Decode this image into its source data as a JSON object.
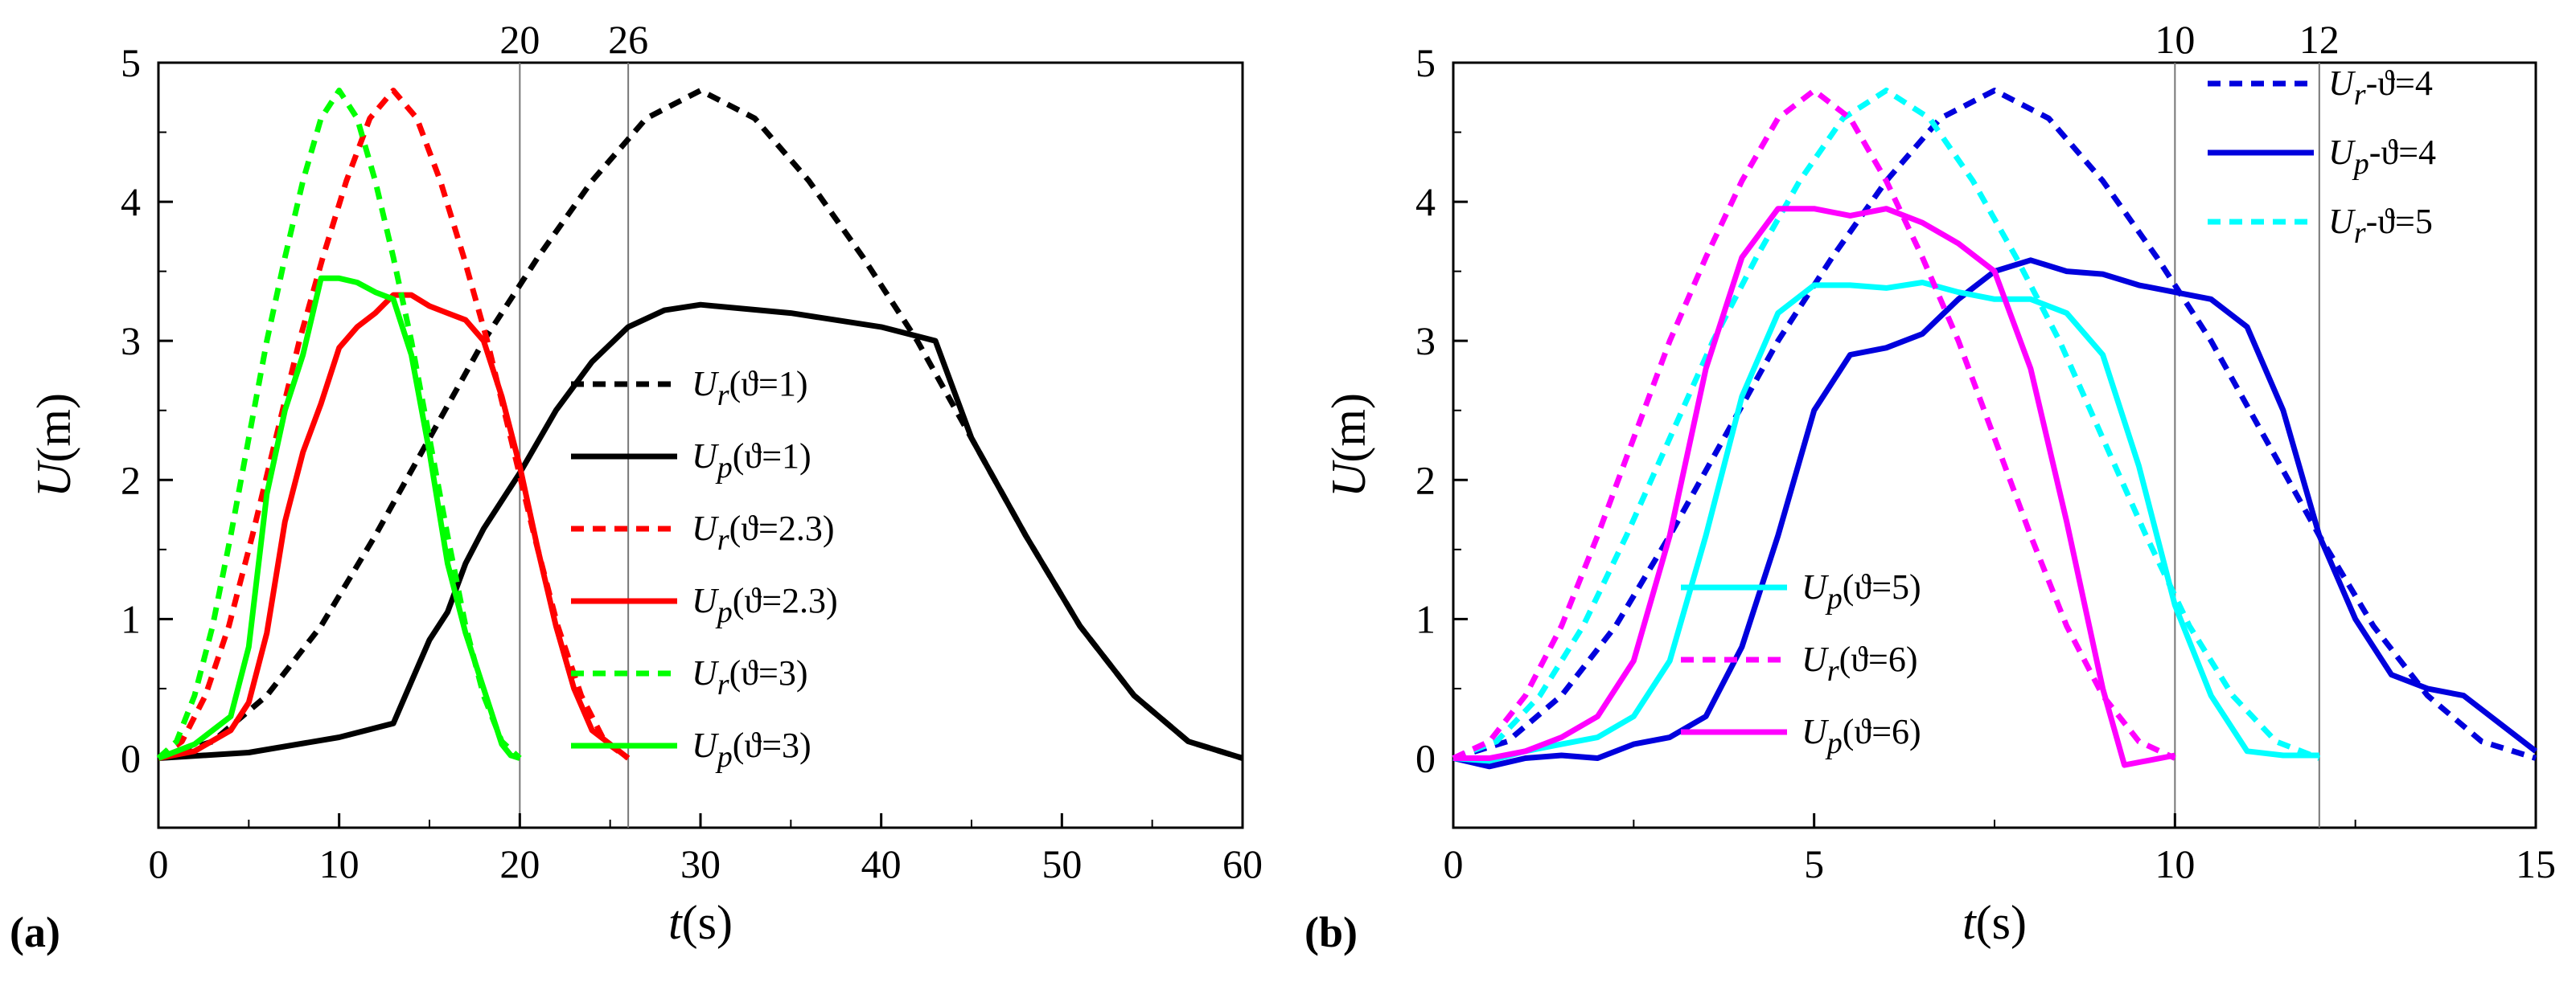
{
  "chart_data": [
    {
      "type": "line",
      "panel_label": "(a)",
      "xlabel_var": "t",
      "xlabel_unit": "(s)",
      "ylabel_var": "U",
      "ylabel_unit": "(m)",
      "xlim": [
        0,
        60
      ],
      "ylim": [
        -0.5,
        5
      ],
      "xticks": [
        "0",
        "10",
        "20",
        "30",
        "40",
        "50",
        "60"
      ],
      "yticks": [
        "0",
        "1",
        "2",
        "3",
        "4",
        "5"
      ],
      "vlines": [
        {
          "x": 20,
          "label": "20"
        },
        {
          "x": 26,
          "label": "26"
        }
      ],
      "series": [
        {
          "var": "U",
          "sub": "r",
          "param": "(ϑ=1)",
          "color": "#000000",
          "dash": true,
          "x": [
            0,
            3,
            6,
            9,
            12,
            15,
            18,
            21,
            24,
            27,
            30,
            33,
            36,
            39,
            42,
            45,
            48,
            51,
            54,
            57,
            60
          ],
          "y": [
            0,
            0.12,
            0.45,
            0.95,
            1.6,
            2.3,
            3.0,
            3.6,
            4.15,
            4.6,
            4.8,
            4.6,
            4.15,
            3.6,
            3.0,
            2.3,
            1.6,
            0.95,
            0.45,
            0.12,
            0
          ]
        },
        {
          "var": "U",
          "sub": "p",
          "param": "(ϑ=1)",
          "color": "#000000",
          "dash": false,
          "x": [
            0,
            5,
            10,
            13,
            14,
            15,
            16,
            17,
            18,
            20,
            22,
            24,
            26,
            28,
            30,
            35,
            40,
            43,
            45,
            48,
            51,
            54,
            57,
            60
          ],
          "y": [
            0,
            0.04,
            0.15,
            0.25,
            0.55,
            0.85,
            1.05,
            1.4,
            1.65,
            2.05,
            2.5,
            2.85,
            3.1,
            3.22,
            3.26,
            3.2,
            3.1,
            3.0,
            2.3,
            1.6,
            0.95,
            0.45,
            0.12,
            0
          ]
        },
        {
          "var": "U",
          "sub": "r",
          "param": "(ϑ=2.3)",
          "color": "#ff0000",
          "dash": true,
          "x": [
            0,
            1.3,
            2.6,
            3.9,
            5.2,
            6.5,
            7.8,
            9.1,
            10.4,
            11.7,
            13,
            14.3,
            15.6,
            16.9,
            18.2,
            19.5,
            20.8,
            22.1,
            23.4,
            24.7,
            26
          ],
          "y": [
            0,
            0.12,
            0.45,
            0.95,
            1.6,
            2.3,
            3.0,
            3.6,
            4.15,
            4.6,
            4.8,
            4.6,
            4.15,
            3.6,
            3.0,
            2.3,
            1.6,
            0.95,
            0.45,
            0.12,
            0
          ]
        },
        {
          "var": "U",
          "sub": "p",
          "param": "(ϑ=2.3)",
          "color": "#ff0000",
          "dash": false,
          "x": [
            0,
            2,
            4,
            5,
            6,
            7,
            8,
            9,
            10,
            11,
            12,
            13,
            14,
            15,
            16,
            17,
            18,
            19,
            20,
            21,
            22,
            23,
            24,
            25,
            26
          ],
          "y": [
            0,
            0.05,
            0.2,
            0.4,
            0.9,
            1.7,
            2.2,
            2.55,
            2.95,
            3.1,
            3.2,
            3.33,
            3.33,
            3.25,
            3.2,
            3.15,
            3.0,
            2.6,
            2.1,
            1.5,
            0.95,
            0.5,
            0.2,
            0.1,
            0
          ]
        },
        {
          "var": "U",
          "sub": "r",
          "param": "(ϑ=3)",
          "color": "#00ff00",
          "dash": true,
          "x": [
            0,
            1,
            2,
            3,
            4,
            5,
            6,
            7,
            8,
            9,
            10,
            11,
            12,
            13,
            14,
            15,
            16,
            17,
            18,
            19,
            20
          ],
          "y": [
            0,
            0.12,
            0.45,
            0.95,
            1.6,
            2.3,
            3.0,
            3.6,
            4.15,
            4.6,
            4.8,
            4.6,
            4.15,
            3.6,
            3.0,
            2.3,
            1.6,
            0.95,
            0.45,
            0.12,
            0
          ]
        },
        {
          "var": "U",
          "sub": "p",
          "param": "(ϑ=3)",
          "color": "#00ff00",
          "dash": false,
          "x": [
            0,
            1,
            2,
            3,
            4,
            5,
            6,
            7,
            8,
            9,
            10,
            11,
            12,
            13,
            14,
            15,
            16,
            17,
            18,
            19,
            19.5,
            20
          ],
          "y": [
            0,
            0.05,
            0.1,
            0.2,
            0.3,
            0.8,
            1.9,
            2.5,
            2.9,
            3.45,
            3.45,
            3.42,
            3.35,
            3.3,
            2.9,
            2.2,
            1.4,
            0.9,
            0.5,
            0.1,
            0.02,
            0
          ]
        }
      ]
    },
    {
      "type": "line",
      "panel_label": "(b)",
      "xlabel_var": "t",
      "xlabel_unit": "(s)",
      "ylabel_var": "U",
      "ylabel_unit": "(m)",
      "xlim": [
        0,
        15
      ],
      "ylim": [
        -0.5,
        5
      ],
      "xticks": [
        "0",
        "5",
        "10",
        "15"
      ],
      "yticks": [
        "0",
        "1",
        "2",
        "3",
        "4",
        "5"
      ],
      "vlines": [
        {
          "x": 10,
          "label": "10"
        },
        {
          "x": 12,
          "label": "12"
        }
      ],
      "series": [
        {
          "var": "U",
          "sub": "r",
          "param": "-ϑ=4",
          "color": "#0000dd",
          "dash": true,
          "x": [
            0,
            0.75,
            1.5,
            2.25,
            3,
            3.75,
            4.5,
            5.25,
            6,
            6.75,
            7.5,
            8.25,
            9,
            9.75,
            10.5,
            11.25,
            12,
            12.75,
            13.5,
            14.25,
            15
          ],
          "y": [
            0,
            0.12,
            0.45,
            0.95,
            1.6,
            2.3,
            3.0,
            3.6,
            4.15,
            4.6,
            4.8,
            4.6,
            4.15,
            3.6,
            3.0,
            2.3,
            1.6,
            0.95,
            0.45,
            0.12,
            0
          ]
        },
        {
          "var": "U",
          "sub": "p",
          "param": "-ϑ=4",
          "color": "#0000dd",
          "dash": false,
          "x": [
            0,
            0.5,
            1,
            1.5,
            2,
            2.5,
            3,
            3.5,
            4,
            4.5,
            5,
            5.5,
            6,
            6.5,
            7,
            7.5,
            8,
            8.5,
            9,
            9.5,
            10,
            10.5,
            11,
            11.5,
            12,
            12.5,
            13,
            13.5,
            14,
            14.5,
            15
          ],
          "y": [
            0,
            -0.06,
            0,
            0.02,
            0,
            0.1,
            0.15,
            0.3,
            0.8,
            1.6,
            2.5,
            2.9,
            2.95,
            3.05,
            3.3,
            3.5,
            3.58,
            3.5,
            3.48,
            3.4,
            3.35,
            3.3,
            3.1,
            2.5,
            1.6,
            1.0,
            0.6,
            0.5,
            0.45,
            0.25,
            0.05
          ]
        },
        {
          "var": "U",
          "sub": "r",
          "param": "-ϑ=5",
          "color": "#00ffff",
          "dash": true,
          "x": [
            0,
            0.6,
            1.2,
            1.8,
            2.4,
            3,
            3.6,
            4.2,
            4.8,
            5.4,
            6,
            6.6,
            7.2,
            7.8,
            8.4,
            9,
            9.6,
            10.2,
            10.8,
            11.4,
            12
          ],
          "y": [
            0,
            0.12,
            0.45,
            0.95,
            1.6,
            2.3,
            3.0,
            3.6,
            4.15,
            4.6,
            4.8,
            4.6,
            4.15,
            3.6,
            3.0,
            2.3,
            1.6,
            0.95,
            0.45,
            0.12,
            0
          ]
        },
        {
          "var": "U",
          "sub": "p",
          "param": "(ϑ=5)",
          "color": "#00ffff",
          "dash": false,
          "x": [
            0,
            0.5,
            1,
            1.5,
            2,
            2.5,
            3,
            3.5,
            4,
            4.5,
            5,
            5.5,
            6,
            6.5,
            7,
            7.5,
            8,
            8.5,
            9,
            9.5,
            10,
            10.5,
            11,
            11.5,
            12
          ],
          "y": [
            0,
            -0.02,
            0.05,
            0.1,
            0.15,
            0.3,
            0.7,
            1.6,
            2.6,
            3.2,
            3.4,
            3.4,
            3.38,
            3.42,
            3.35,
            3.3,
            3.3,
            3.2,
            2.9,
            2.1,
            1.1,
            0.45,
            0.05,
            0.02,
            0.02
          ]
        },
        {
          "var": "U",
          "sub": "r",
          "param": "(ϑ=6)",
          "color": "#ff00ff",
          "dash": true,
          "x": [
            0,
            0.5,
            1,
            1.5,
            2,
            2.5,
            3,
            3.5,
            4,
            4.5,
            5,
            5.5,
            6,
            6.5,
            7,
            7.5,
            8,
            8.5,
            9,
            9.5,
            10
          ],
          "y": [
            0,
            0.12,
            0.45,
            0.95,
            1.6,
            2.3,
            3.0,
            3.6,
            4.15,
            4.6,
            4.8,
            4.6,
            4.15,
            3.6,
            3.0,
            2.3,
            1.6,
            0.95,
            0.45,
            0.12,
            0
          ]
        },
        {
          "var": "U",
          "sub": "p",
          "param": "(ϑ=6)",
          "color": "#ff00ff",
          "dash": false,
          "x": [
            0,
            0.5,
            1,
            1.5,
            2,
            2.5,
            3,
            3.5,
            4,
            4.5,
            5,
            5.5,
            6,
            6.5,
            7,
            7.5,
            8,
            8.5,
            9,
            9.3,
            9.6,
            10
          ],
          "y": [
            0,
            0,
            0.05,
            0.15,
            0.3,
            0.7,
            1.6,
            2.8,
            3.6,
            3.95,
            3.95,
            3.9,
            3.95,
            3.85,
            3.7,
            3.5,
            2.8,
            1.7,
            0.5,
            -0.05,
            -0.02,
            0.02
          ]
        }
      ]
    }
  ]
}
